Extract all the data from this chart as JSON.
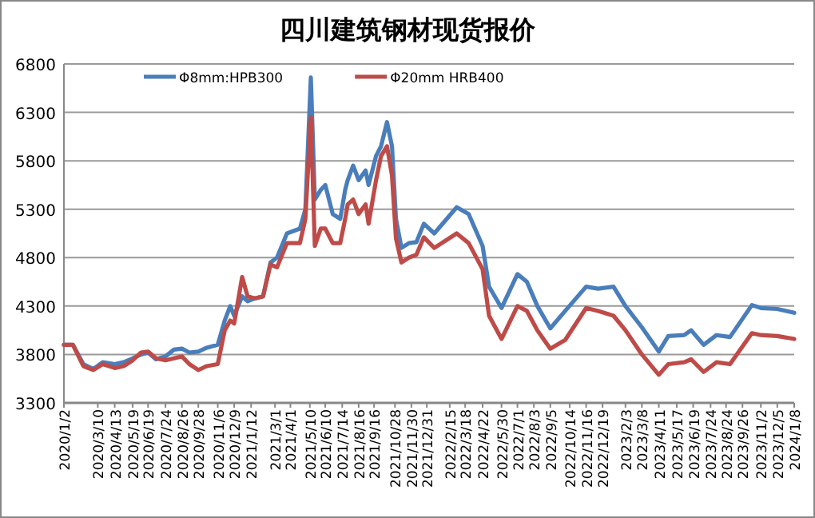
{
  "chart_data": {
    "type": "line",
    "title": "四川建筑钢材现货报价",
    "x": [
      "2020-01-02",
      "2020-01-20",
      "2020-02-10",
      "2020-03-01",
      "2020-03-20",
      "2020-04-13",
      "2020-05-01",
      "2020-05-19",
      "2020-06-05",
      "2020-06-19",
      "2020-07-05",
      "2020-07-24",
      "2020-08-10",
      "2020-08-26",
      "2020-09-10",
      "2020-09-28",
      "2020-10-15",
      "2020-11-06",
      "2020-11-20",
      "2020-12-01",
      "2020-12-09",
      "2020-12-25",
      "2021-01-05",
      "2021-01-20",
      "2021-02-05",
      "2021-02-20",
      "2021-03-05",
      "2021-03-25",
      "2021-04-20",
      "2021-05-01",
      "2021-05-12",
      "2021-05-20",
      "2021-06-01",
      "2021-06-10",
      "2021-06-25",
      "2021-07-10",
      "2021-07-20",
      "2021-07-25",
      "2021-08-05",
      "2021-08-16",
      "2021-08-30",
      "2021-09-05",
      "2021-09-20",
      "2021-09-30",
      "2021-10-12",
      "2021-10-22",
      "2021-10-30",
      "2021-11-10",
      "2021-11-25",
      "2021-12-10",
      "2021-12-25",
      "2022-01-15",
      "2022-03-01",
      "2022-03-25",
      "2022-04-22",
      "2022-05-05",
      "2022-05-30",
      "2022-07-01",
      "2022-07-20",
      "2022-08-10",
      "2022-09-05",
      "2022-10-05",
      "2022-11-16",
      "2022-12-10",
      "2023-01-10",
      "2023-02-03",
      "2023-03-08",
      "2023-04-11",
      "2023-04-30",
      "2023-06-01",
      "2023-06-15",
      "2023-07-10",
      "2023-08-05",
      "2023-09-01",
      "2023-10-15",
      "2023-11-02",
      "2023-12-05",
      "2024-01-08"
    ],
    "series": [
      {
        "name": "Φ8mm:HPB300",
        "color": "#4a7ebb",
        "values": [
          3900,
          3900,
          3700,
          3650,
          3720,
          3700,
          3720,
          3760,
          3800,
          3820,
          3750,
          3780,
          3850,
          3860,
          3820,
          3830,
          3870,
          3900,
          4150,
          4300,
          4200,
          4400,
          4350,
          4380,
          4400,
          4750,
          4800,
          5050,
          5100,
          5300,
          6660,
          5400,
          5500,
          5550,
          5250,
          5200,
          5500,
          5600,
          5750,
          5600,
          5700,
          5550,
          5850,
          5950,
          6200,
          5950,
          5200,
          4900,
          4950,
          4960,
          5150,
          5050,
          5320,
          5250,
          4920,
          4500,
          4280,
          4630,
          4550,
          4300,
          4070,
          4250,
          4500,
          4480,
          4500,
          4300,
          4080,
          3830,
          3990,
          4000,
          4050,
          3900,
          4000,
          3980,
          4310,
          4280,
          4270,
          4230
        ]
      },
      {
        "name": "Φ20mm HRB400",
        "color": "#be4b48",
        "values": [
          3900,
          3900,
          3680,
          3640,
          3700,
          3660,
          3680,
          3740,
          3820,
          3830,
          3760,
          3740,
          3760,
          3780,
          3700,
          3640,
          3680,
          3700,
          4050,
          4150,
          4120,
          4600,
          4400,
          4380,
          4400,
          4730,
          4700,
          4950,
          4950,
          5200,
          6250,
          4920,
          5100,
          5100,
          4950,
          4950,
          5200,
          5350,
          5400,
          5250,
          5350,
          5150,
          5600,
          5850,
          5950,
          5650,
          5000,
          4750,
          4800,
          4830,
          5010,
          4900,
          5050,
          4950,
          4680,
          4200,
          3960,
          4300,
          4250,
          4050,
          3860,
          3950,
          4280,
          4250,
          4200,
          4050,
          3800,
          3590,
          3700,
          3720,
          3750,
          3620,
          3720,
          3700,
          4020,
          4000,
          3990,
          3960
        ]
      }
    ],
    "xlim": [
      "2020-01-02",
      "2024-01-08"
    ],
    "xticks": [
      {
        "value": "2020-01-02",
        "label": "2020/1/2"
      },
      {
        "value": "2020-03-10",
        "label": "2020/3/10"
      },
      {
        "value": "2020-04-13",
        "label": "2020/4/13"
      },
      {
        "value": "2020-05-19",
        "label": "2020/5/19"
      },
      {
        "value": "2020-06-19",
        "label": "2020/6/19"
      },
      {
        "value": "2020-07-24",
        "label": "2020/7/24"
      },
      {
        "value": "2020-08-26",
        "label": "2020/8/26"
      },
      {
        "value": "2020-09-28",
        "label": "2020/9/28"
      },
      {
        "value": "2020-11-06",
        "label": "2020/11/6"
      },
      {
        "value": "2020-12-09",
        "label": "2020/12/9"
      },
      {
        "value": "2021-01-12",
        "label": "2021/1/12"
      },
      {
        "value": "2021-03-01",
        "label": "2021/3/1"
      },
      {
        "value": "2021-04-01",
        "label": "2021/4/1"
      },
      {
        "value": "2021-05-10",
        "label": "2021/5/10"
      },
      {
        "value": "2021-06-10",
        "label": "2021/6/10"
      },
      {
        "value": "2021-07-14",
        "label": "2021/7/14"
      },
      {
        "value": "2021-08-16",
        "label": "2021/8/16"
      },
      {
        "value": "2021-09-16",
        "label": "2021/9/16"
      },
      {
        "value": "2021-10-28",
        "label": "2021/10/28"
      },
      {
        "value": "2021-11-30",
        "label": "2021/11/30"
      },
      {
        "value": "2021-12-31",
        "label": "2021/12/31"
      },
      {
        "value": "2022-02-15",
        "label": "2022/2/15"
      },
      {
        "value": "2022-03-18",
        "label": "2022/3/18"
      },
      {
        "value": "2022-04-22",
        "label": "2022/4/22"
      },
      {
        "value": "2022-05-30",
        "label": "2022/5/30"
      },
      {
        "value": "2022-07-01",
        "label": "2022/7/1"
      },
      {
        "value": "2022-08-03",
        "label": "2022/8/3"
      },
      {
        "value": "2022-09-05",
        "label": "2022/9/5"
      },
      {
        "value": "2022-10-14",
        "label": "2022/10/14"
      },
      {
        "value": "2022-11-16",
        "label": "2022/11/16"
      },
      {
        "value": "2022-12-19",
        "label": "2022/12/19"
      },
      {
        "value": "2023-02-03",
        "label": "2023/2/3"
      },
      {
        "value": "2023-03-08",
        "label": "2023/3/8"
      },
      {
        "value": "2023-04-11",
        "label": "2023/4/11"
      },
      {
        "value": "2023-05-17",
        "label": "2023/5/17"
      },
      {
        "value": "2023-06-19",
        "label": "2023/6/19"
      },
      {
        "value": "2023-07-24",
        "label": "2023/7/24"
      },
      {
        "value": "2023-08-24",
        "label": "2023/8/24"
      },
      {
        "value": "2023-09-26",
        "label": "2023/9/26"
      },
      {
        "value": "2023-11-02",
        "label": "2023/11/2"
      },
      {
        "value": "2023-12-05",
        "label": "2023/12/5"
      },
      {
        "value": "2024-01-08",
        "label": "2024/1/8"
      }
    ],
    "ylim": [
      3300,
      6800
    ],
    "yticks": [
      3300,
      3800,
      4300,
      4800,
      5300,
      5800,
      6300,
      6800
    ],
    "grid": "y",
    "legend": "top",
    "marker": "none",
    "line_style": "solid"
  }
}
